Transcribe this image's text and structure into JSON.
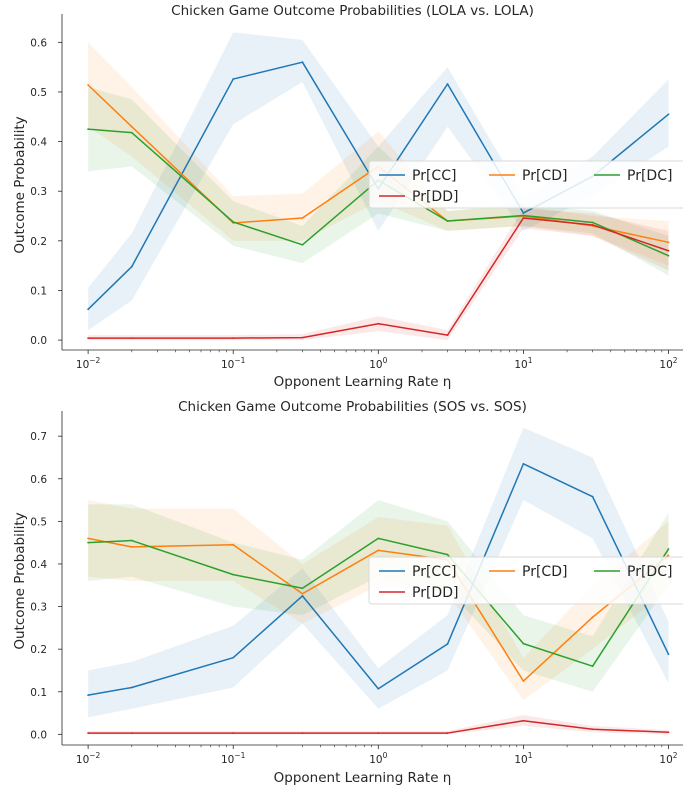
{
  "chart_data": [
    {
      "type": "line",
      "title": "Chicken Game Outcome Probabilities (LOLA vs. LOLA)",
      "xlabel": "Opponent Learning Rate η",
      "ylabel": "Outcome Probability",
      "xscale": "log",
      "x": [
        0.01,
        0.02,
        0.1,
        0.3,
        1,
        3,
        10,
        30,
        100
      ],
      "xticks": [
        0.01,
        0.1,
        1,
        10,
        100
      ],
      "xtick_labels": [
        {
          "base": "10",
          "exp": "−2"
        },
        {
          "base": "10",
          "exp": "−1"
        },
        {
          "base": "10",
          "exp": "0"
        },
        {
          "base": "10",
          "exp": "1"
        },
        {
          "base": "10",
          "exp": "2"
        }
      ],
      "ylim": [
        -0.02,
        0.645
      ],
      "yticks": [
        0.0,
        0.1,
        0.2,
        0.3,
        0.4,
        0.5,
        0.6
      ],
      "ytick_labels": [
        "0.0",
        "0.1",
        "0.2",
        "0.3",
        "0.4",
        "0.5",
        "0.6"
      ],
      "grid": false,
      "legend": {
        "placement": "center-right",
        "ncol": 3
      },
      "series": [
        {
          "name": "Pr[CC]",
          "color": "#1f77b4",
          "values": [
            0.062,
            0.148,
            0.526,
            0.56,
            0.305,
            0.516,
            0.256,
            0.33,
            0.455
          ],
          "lower": [
            0.02,
            0.08,
            0.435,
            0.52,
            0.22,
            0.43,
            0.22,
            0.29,
            0.39
          ],
          "upper": [
            0.105,
            0.215,
            0.62,
            0.605,
            0.39,
            0.55,
            0.29,
            0.37,
            0.525
          ]
        },
        {
          "name": "Pr[CD]",
          "color": "#ff7f0e",
          "values": [
            0.514,
            0.43,
            0.236,
            0.246,
            0.35,
            0.24,
            0.25,
            0.23,
            0.197
          ],
          "lower": [
            0.43,
            0.37,
            0.2,
            0.2,
            0.28,
            0.22,
            0.23,
            0.21,
            0.15
          ],
          "upper": [
            0.6,
            0.51,
            0.29,
            0.295,
            0.42,
            0.26,
            0.27,
            0.25,
            0.24
          ]
        },
        {
          "name": "Pr[DC]",
          "color": "#2ca02c",
          "values": [
            0.425,
            0.418,
            0.238,
            0.192,
            0.322,
            0.24,
            0.251,
            0.237,
            0.17
          ],
          "lower": [
            0.34,
            0.35,
            0.19,
            0.155,
            0.255,
            0.22,
            0.23,
            0.215,
            0.13
          ],
          "upper": [
            0.51,
            0.485,
            0.28,
            0.23,
            0.39,
            0.26,
            0.275,
            0.26,
            0.21
          ]
        },
        {
          "name": "Pr[DD]",
          "color": "#d62728",
          "values": [
            0.004,
            0.004,
            0.004,
            0.005,
            0.033,
            0.01,
            0.246,
            0.232,
            0.18
          ],
          "lower": [
            0.0,
            0.0,
            0.0,
            0.0,
            0.018,
            0.0,
            0.225,
            0.21,
            0.14
          ],
          "upper": [
            0.01,
            0.01,
            0.01,
            0.012,
            0.048,
            0.02,
            0.265,
            0.255,
            0.22
          ]
        }
      ]
    },
    {
      "type": "line",
      "title": "Chicken Game Outcome Probabilities (SOS vs. SOS)",
      "xlabel": "Opponent Learning Rate η",
      "ylabel": "Outcome Probability",
      "xscale": "log",
      "x": [
        0.01,
        0.02,
        0.1,
        0.3,
        1,
        3,
        10,
        30,
        100
      ],
      "xticks": [
        0.01,
        0.1,
        1,
        10,
        100
      ],
      "xtick_labels": [
        {
          "base": "10",
          "exp": "−2"
        },
        {
          "base": "10",
          "exp": "−1"
        },
        {
          "base": "10",
          "exp": "0"
        },
        {
          "base": "10",
          "exp": "1"
        },
        {
          "base": "10",
          "exp": "2"
        }
      ],
      "ylim": [
        -0.025,
        0.745
      ],
      "yticks": [
        0.0,
        0.1,
        0.2,
        0.3,
        0.4,
        0.5,
        0.6,
        0.7
      ],
      "ytick_labels": [
        "0.0",
        "0.1",
        "0.2",
        "0.3",
        "0.4",
        "0.5",
        "0.6",
        "0.7"
      ],
      "grid": false,
      "legend": {
        "placement": "center-right",
        "ncol": 3
      },
      "series": [
        {
          "name": "Pr[CC]",
          "color": "#1f77b4",
          "values": [
            0.092,
            0.11,
            0.18,
            0.325,
            0.107,
            0.212,
            0.635,
            0.558,
            0.188
          ],
          "lower": [
            0.04,
            0.06,
            0.11,
            0.26,
            0.06,
            0.15,
            0.55,
            0.46,
            0.12
          ],
          "upper": [
            0.15,
            0.17,
            0.255,
            0.39,
            0.155,
            0.28,
            0.72,
            0.65,
            0.265
          ]
        },
        {
          "name": "Pr[CD]",
          "color": "#ff7f0e",
          "values": [
            0.46,
            0.44,
            0.445,
            0.33,
            0.432,
            0.41,
            0.125,
            0.275,
            0.42
          ],
          "lower": [
            0.37,
            0.36,
            0.36,
            0.26,
            0.35,
            0.33,
            0.08,
            0.2,
            0.34
          ],
          "upper": [
            0.55,
            0.53,
            0.53,
            0.4,
            0.51,
            0.49,
            0.18,
            0.35,
            0.5
          ]
        },
        {
          "name": "Pr[DC]",
          "color": "#2ca02c",
          "values": [
            0.45,
            0.455,
            0.375,
            0.343,
            0.46,
            0.422,
            0.213,
            0.16,
            0.435
          ],
          "lower": [
            0.36,
            0.37,
            0.3,
            0.28,
            0.37,
            0.34,
            0.15,
            0.1,
            0.35
          ],
          "upper": [
            0.54,
            0.54,
            0.45,
            0.41,
            0.55,
            0.5,
            0.28,
            0.23,
            0.52
          ]
        },
        {
          "name": "Pr[DD]",
          "color": "#d62728",
          "values": [
            0.003,
            0.003,
            0.003,
            0.003,
            0.003,
            0.003,
            0.032,
            0.012,
            0.005
          ],
          "lower": [
            0.0,
            0.0,
            0.0,
            0.0,
            0.0,
            0.0,
            0.02,
            0.005,
            0.0
          ],
          "upper": [
            0.008,
            0.008,
            0.008,
            0.008,
            0.008,
            0.008,
            0.045,
            0.02,
            0.01
          ]
        }
      ]
    }
  ]
}
